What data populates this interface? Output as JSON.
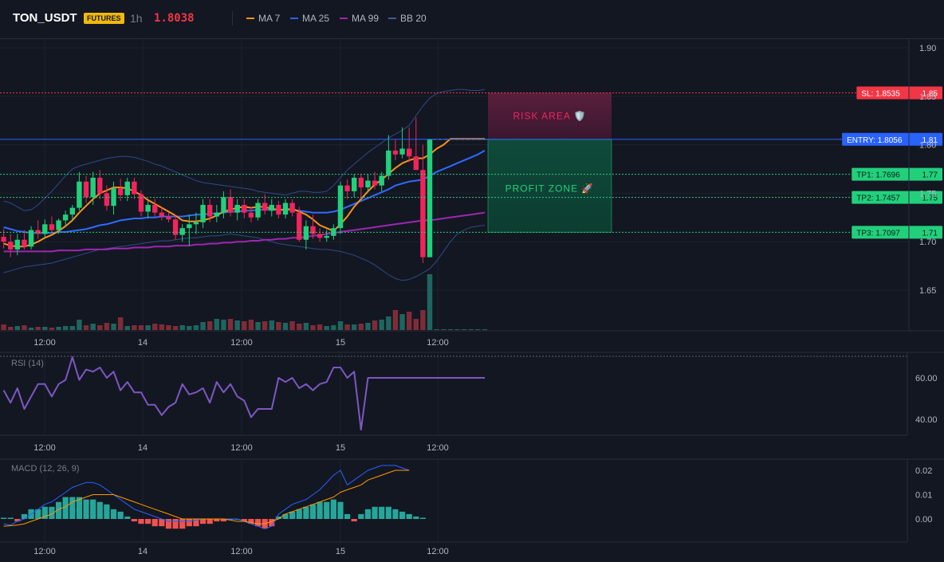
{
  "header": {
    "symbol": "TON_USDT",
    "badge": "FUTURES",
    "timeframe": "1h",
    "price": "1.8038",
    "legend": [
      {
        "label": "MA 7",
        "color": "#f7931a"
      },
      {
        "label": "MA 25",
        "color": "#2962ff"
      },
      {
        "label": "MA 99",
        "color": "#9c27b0"
      },
      {
        "label": "BB 20",
        "color": "#3d5a99"
      }
    ]
  },
  "colors": {
    "up": "#22d07c",
    "down": "#f2245c",
    "vol_up": "#26a69a",
    "vol_down": "#ef5350",
    "ma7": "#f7931a",
    "ma25": "#2f6bff",
    "ma99": "#9c27b0",
    "bb": "#2e4a8a",
    "sl": "#f23645",
    "entry": "#2962ff",
    "tp": "#22d07c"
  },
  "time_ticks": [
    "12:00",
    "14",
    "12:00",
    "15",
    "12:00"
  ],
  "chart_data": [
    {
      "type": "candlestick",
      "title": "TON_USDT 1h",
      "y_ticks": [
        1.9,
        1.85,
        1.8,
        1.75,
        1.7,
        1.65
      ],
      "ylim": [
        1.613,
        1.911
      ],
      "candles": [
        [
          1.705,
          1.713,
          1.693,
          1.7
        ],
        [
          1.7,
          1.708,
          1.684,
          1.692
        ],
        [
          1.692,
          1.708,
          1.686,
          1.702
        ],
        [
          1.702,
          1.712,
          1.692,
          1.695
        ],
        [
          1.695,
          1.716,
          1.692,
          1.712
        ],
        [
          1.712,
          1.722,
          1.703,
          1.708
        ],
        [
          1.708,
          1.723,
          1.704,
          1.718
        ],
        [
          1.718,
          1.726,
          1.707,
          1.712
        ],
        [
          1.712,
          1.724,
          1.708,
          1.722
        ],
        [
          1.722,
          1.732,
          1.716,
          1.728
        ],
        [
          1.728,
          1.738,
          1.722,
          1.735
        ],
        [
          1.735,
          1.772,
          1.732,
          1.762
        ],
        [
          1.762,
          1.768,
          1.74,
          1.746
        ],
        [
          1.746,
          1.772,
          1.738,
          1.766
        ],
        [
          1.766,
          1.774,
          1.744,
          1.75
        ],
        [
          1.75,
          1.758,
          1.732,
          1.737
        ],
        [
          1.737,
          1.762,
          1.728,
          1.755
        ],
        [
          1.755,
          1.765,
          1.742,
          1.748
        ],
        [
          1.748,
          1.766,
          1.742,
          1.762
        ],
        [
          1.762,
          1.766,
          1.744,
          1.749
        ],
        [
          1.749,
          1.753,
          1.726,
          1.731
        ],
        [
          1.731,
          1.742,
          1.724,
          1.738
        ],
        [
          1.738,
          1.744,
          1.726,
          1.73
        ],
        [
          1.73,
          1.736,
          1.722,
          1.726
        ],
        [
          1.726,
          1.73,
          1.72,
          1.723
        ],
        [
          1.723,
          1.728,
          1.702,
          1.707
        ],
        [
          1.707,
          1.718,
          1.7,
          1.714
        ],
        [
          1.714,
          1.728,
          1.696,
          1.718
        ],
        [
          1.718,
          1.73,
          1.708,
          1.72
        ],
        [
          1.72,
          1.744,
          1.714,
          1.738
        ],
        [
          1.738,
          1.744,
          1.72,
          1.726
        ],
        [
          1.726,
          1.738,
          1.72,
          1.73
        ],
        [
          1.73,
          1.752,
          1.724,
          1.746
        ],
        [
          1.746,
          1.754,
          1.726,
          1.73
        ],
        [
          1.73,
          1.744,
          1.722,
          1.738
        ],
        [
          1.738,
          1.744,
          1.724,
          1.73
        ],
        [
          1.73,
          1.736,
          1.72,
          1.725
        ],
        [
          1.725,
          1.744,
          1.722,
          1.74
        ],
        [
          1.74,
          1.749,
          1.728,
          1.732
        ],
        [
          1.732,
          1.744,
          1.726,
          1.738
        ],
        [
          1.738,
          1.742,
          1.724,
          1.728
        ],
        [
          1.728,
          1.744,
          1.724,
          1.74
        ],
        [
          1.74,
          1.744,
          1.726,
          1.73
        ],
        [
          1.73,
          1.736,
          1.7,
          1.702
        ],
        [
          1.702,
          1.722,
          1.692,
          1.716
        ],
        [
          1.716,
          1.728,
          1.703,
          1.708
        ],
        [
          1.708,
          1.714,
          1.7,
          1.704
        ],
        [
          1.704,
          1.712,
          1.7,
          1.706
        ],
        [
          1.706,
          1.718,
          1.702,
          1.714
        ],
        [
          1.714,
          1.762,
          1.708,
          1.758
        ],
        [
          1.758,
          1.764,
          1.744,
          1.752
        ],
        [
          1.752,
          1.77,
          1.746,
          1.766
        ],
        [
          1.766,
          1.77,
          1.744,
          1.756
        ],
        [
          1.756,
          1.77,
          1.752,
          1.763
        ],
        [
          1.763,
          1.772,
          1.754,
          1.758
        ],
        [
          1.758,
          1.772,
          1.752,
          1.768
        ],
        [
          1.768,
          1.81,
          1.764,
          1.794
        ],
        [
          1.794,
          1.805,
          1.784,
          1.79
        ],
        [
          1.79,
          1.818,
          1.786,
          1.796
        ],
        [
          1.796,
          1.818,
          1.782,
          1.788
        ],
        [
          1.788,
          1.828,
          1.774,
          1.774
        ],
        [
          1.774,
          1.8,
          1.678,
          1.684
        ],
        [
          1.684,
          1.806,
          1.684,
          1.806
        ]
      ],
      "ma7": [
        1.698,
        1.696,
        1.695,
        1.695,
        1.697,
        1.7,
        1.704,
        1.707,
        1.711,
        1.716,
        1.722,
        1.73,
        1.737,
        1.744,
        1.75,
        1.753,
        1.756,
        1.756,
        1.755,
        1.752,
        1.748,
        1.743,
        1.739,
        1.735,
        1.731,
        1.727,
        1.722,
        1.721,
        1.721,
        1.722,
        1.724,
        1.727,
        1.731,
        1.733,
        1.735,
        1.736,
        1.735,
        1.736,
        1.736,
        1.734,
        1.733,
        1.733,
        1.734,
        1.731,
        1.728,
        1.723,
        1.717,
        1.714,
        1.711,
        1.718,
        1.726,
        1.736,
        1.744,
        1.752,
        1.759,
        1.764,
        1.77,
        1.776,
        1.781,
        1.784,
        1.786,
        1.786,
        1.79,
        1.796,
        1.8,
        1.806,
        1.806,
        1.806,
        1.806,
        1.806,
        1.806
      ],
      "ma25": [
        1.715,
        1.713,
        1.711,
        1.71,
        1.709,
        1.709,
        1.709,
        1.709,
        1.71,
        1.71,
        1.711,
        1.712,
        1.713,
        1.715,
        1.717,
        1.718,
        1.72,
        1.722,
        1.723,
        1.724,
        1.724,
        1.725,
        1.725,
        1.726,
        1.726,
        1.726,
        1.726,
        1.727,
        1.728,
        1.728,
        1.729,
        1.729,
        1.73,
        1.731,
        1.731,
        1.732,
        1.732,
        1.733,
        1.733,
        1.733,
        1.733,
        1.733,
        1.733,
        1.732,
        1.731,
        1.73,
        1.73,
        1.73,
        1.731,
        1.733,
        1.736,
        1.739,
        1.742,
        1.745,
        1.748,
        1.751,
        1.754,
        1.758,
        1.76,
        1.762,
        1.763,
        1.764,
        1.768,
        1.772,
        1.775,
        1.778,
        1.781,
        1.784,
        1.787,
        1.79,
        1.794
      ],
      "ma99": [
        1.69,
        1.69,
        1.69,
        1.69,
        1.69,
        1.69,
        1.69,
        1.69,
        1.691,
        1.691,
        1.691,
        1.691,
        1.692,
        1.692,
        1.692,
        1.692,
        1.693,
        1.693,
        1.693,
        1.694,
        1.694,
        1.694,
        1.695,
        1.695,
        1.695,
        1.696,
        1.696,
        1.696,
        1.697,
        1.697,
        1.698,
        1.698,
        1.699,
        1.699,
        1.7,
        1.7,
        1.701,
        1.701,
        1.702,
        1.702,
        1.703,
        1.703,
        1.704,
        1.704,
        1.705,
        1.706,
        1.707,
        1.708,
        1.709,
        1.71,
        1.711,
        1.712,
        1.713,
        1.714,
        1.715,
        1.716,
        1.717,
        1.718,
        1.719,
        1.72,
        1.721,
        1.722,
        1.722,
        1.723,
        1.724,
        1.725,
        1.726,
        1.727,
        1.728,
        1.729,
        1.73
      ],
      "bb_upper": [
        1.742,
        1.74,
        1.736,
        1.732,
        1.733,
        1.738,
        1.745,
        1.752,
        1.76,
        1.768,
        1.775,
        1.778,
        1.78,
        1.782,
        1.784,
        1.786,
        1.787,
        1.788,
        1.788,
        1.787,
        1.785,
        1.783,
        1.78,
        1.778,
        1.775,
        1.772,
        1.769,
        1.766,
        1.763,
        1.761,
        1.76,
        1.759,
        1.758,
        1.757,
        1.756,
        1.755,
        1.754,
        1.752,
        1.751,
        1.75,
        1.749,
        1.748,
        1.75,
        1.752,
        1.752,
        1.751,
        1.751,
        1.752,
        1.758,
        1.766,
        1.774,
        1.78,
        1.786,
        1.792,
        1.797,
        1.802,
        1.807,
        1.811,
        1.815,
        1.82,
        1.83,
        1.84,
        1.848,
        1.853,
        1.855,
        1.856,
        1.857,
        1.857,
        1.856,
        1.856,
        1.857
      ],
      "bb_lower": [
        1.668,
        1.67,
        1.672,
        1.674,
        1.675,
        1.676,
        1.677,
        1.678,
        1.68,
        1.682,
        1.684,
        1.686,
        1.688,
        1.69,
        1.692,
        1.693,
        1.694,
        1.695,
        1.696,
        1.697,
        1.698,
        1.699,
        1.7,
        1.701,
        1.701,
        1.702,
        1.703,
        1.704,
        1.704,
        1.705,
        1.706,
        1.706,
        1.707,
        1.708,
        1.707,
        1.706,
        1.705,
        1.704,
        1.702,
        1.7,
        1.698,
        1.697,
        1.696,
        1.695,
        1.694,
        1.693,
        1.692,
        1.692,
        1.691,
        1.69,
        1.688,
        1.686,
        1.683,
        1.68,
        1.676,
        1.671,
        1.666,
        1.662,
        1.66,
        1.661,
        1.664,
        1.668,
        1.672,
        1.68,
        1.69,
        1.7,
        1.708,
        1.712,
        1.715,
        1.716,
        1.717
      ],
      "volume": [
        7,
        4,
        5,
        6,
        3,
        4,
        4,
        3,
        4,
        5,
        5,
        13,
        6,
        8,
        6,
        9,
        8,
        16,
        5,
        6,
        6,
        6,
        8,
        7,
        6,
        5,
        6,
        5,
        6,
        10,
        11,
        14,
        13,
        14,
        12,
        11,
        13,
        10,
        11,
        12,
        10,
        9,
        11,
        8,
        9,
        6,
        7,
        5,
        6,
        11,
        7,
        7,
        8,
        9,
        12,
        13,
        17,
        25,
        20,
        23,
        14,
        25,
        70,
        1,
        1,
        1,
        1,
        1,
        1,
        1,
        1
      ],
      "levels": [
        {
          "label": "SL: 1.8535",
          "value": "1.85",
          "price": 1.8535
        },
        {
          "label": "ENTRY: 1.8056",
          "value": "1.81",
          "price": 1.8056
        },
        {
          "label": "TP1: 1.7696",
          "value": "1.77",
          "price": 1.7696
        },
        {
          "label": "TP2: 1.7457",
          "value": "1.75",
          "price": 1.7457
        },
        {
          "label": "TP3: 1.7097",
          "value": "1.71",
          "price": 1.7097
        }
      ],
      "zones": {
        "risk_label": "RISK AREA 🛡️",
        "profit_label": "PROFIT ZONE 🚀"
      }
    },
    {
      "type": "line",
      "title": "RSI (14)",
      "y_ticks": [
        60.0,
        40.0
      ],
      "ylim": [
        33.6,
        70.4
      ],
      "values": [
        54,
        48,
        55,
        45,
        51,
        57,
        57,
        51,
        57,
        59,
        70,
        59,
        64,
        63,
        65,
        60,
        63,
        54,
        58,
        53,
        53,
        47,
        47,
        42,
        46,
        48,
        57,
        52,
        53,
        55,
        48,
        58,
        53,
        57,
        51,
        49,
        41,
        45,
        45,
        45,
        60,
        58,
        60,
        55,
        57,
        54,
        57,
        58,
        65,
        65,
        60,
        63,
        35,
        60,
        60,
        60,
        60,
        60,
        60,
        60,
        60,
        60,
        60,
        60,
        60,
        60,
        60,
        60,
        60,
        60,
        60
      ]
    },
    {
      "type": "bar",
      "title": "MACD (12, 26, 9)",
      "y_ticks": [
        0.02,
        0.01,
        0.0
      ],
      "ylim": [
        -0.0085,
        0.0245
      ],
      "histogram": [
        0.0005,
        0.0005,
        -0.001,
        0.002,
        0.004,
        0.004,
        0.005,
        0.005,
        0.007,
        0.009,
        0.009,
        0.009,
        0.008,
        0.008,
        0.007,
        0.006,
        0.004,
        0.003,
        0.001,
        -0.001,
        -0.002,
        -0.002,
        -0.003,
        -0.003,
        -0.004,
        -0.004,
        -0.004,
        -0.003,
        -0.003,
        -0.002,
        -0.002,
        -0.001,
        -0.001,
        0.0,
        0.0,
        -0.001,
        -0.002,
        -0.003,
        -0.004,
        -0.003,
        0.001,
        0.002,
        0.003,
        0.004,
        0.005,
        0.006,
        0.007,
        0.007,
        0.008,
        0.007,
        0.002,
        -0.001,
        0.002,
        0.004,
        0.005,
        0.005,
        0.005,
        0.004,
        0.003,
        0.002,
        0.001,
        0.0005
      ],
      "macd": [
        -0.002,
        -0.0025,
        -0.001,
        0.0,
        0.002,
        0.004,
        0.006,
        0.007,
        0.009,
        0.011,
        0.013,
        0.014,
        0.015,
        0.015,
        0.014,
        0.012,
        0.01,
        0.008,
        0.006,
        0.004,
        0.003,
        0.002,
        0.001,
        0.0,
        -0.001,
        -0.001,
        -0.001,
        -0.001,
        -0.0005,
        0.0,
        0.0,
        0.0,
        0.0,
        0.0,
        0.0,
        -0.001,
        -0.002,
        -0.003,
        -0.004,
        -0.003,
        0.002,
        0.004,
        0.006,
        0.007,
        0.008,
        0.01,
        0.012,
        0.015,
        0.018,
        0.02,
        0.014,
        0.016,
        0.018,
        0.02,
        0.021,
        0.022,
        0.022,
        0.022,
        0.021,
        0.02
      ],
      "signal": [
        -0.003,
        -0.0028,
        -0.0025,
        -0.002,
        -0.001,
        0.0,
        0.001,
        0.002,
        0.004,
        0.005,
        0.007,
        0.008,
        0.009,
        0.01,
        0.01,
        0.01,
        0.01,
        0.009,
        0.008,
        0.007,
        0.006,
        0.005,
        0.004,
        0.003,
        0.002,
        0.001,
        0.0,
        0.0,
        0.0,
        0.0,
        0.0,
        0.0,
        0.0,
        -0.0005,
        -0.001,
        -0.001,
        -0.0015,
        -0.002,
        -0.002,
        -0.001,
        0.0,
        0.002,
        0.003,
        0.004,
        0.005,
        0.006,
        0.007,
        0.008,
        0.009,
        0.011,
        0.012,
        0.013,
        0.014,
        0.016,
        0.017,
        0.018,
        0.019,
        0.02,
        0.02,
        0.02
      ]
    }
  ]
}
